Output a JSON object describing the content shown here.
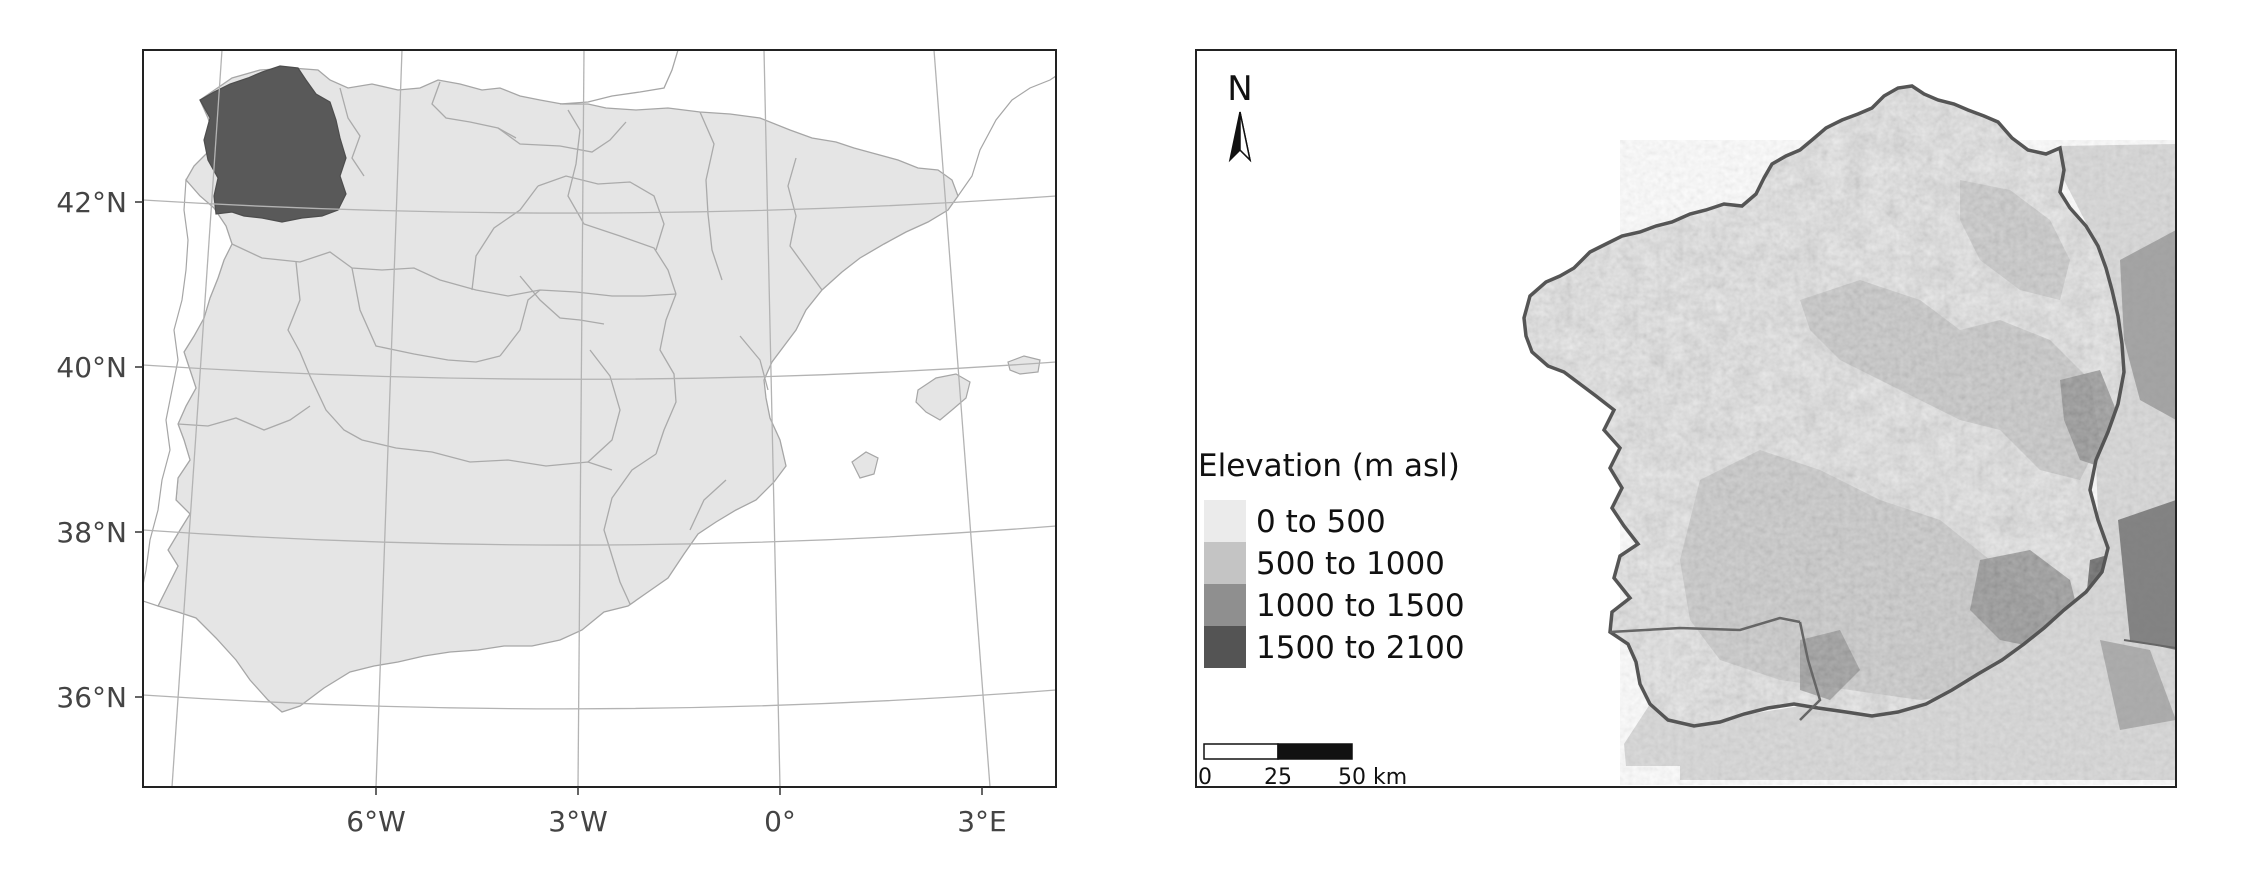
{
  "left_map": {
    "lat_labels": [
      "42°N",
      "40°N",
      "38°N",
      "36°N"
    ],
    "lon_labels": [
      "6°W",
      "3°W",
      "0°",
      "3°E"
    ],
    "highlighted_region_color": "#595959",
    "land_color": "#e5e5e5",
    "graticule_color": "#b3b3b3",
    "border_color": "#a6a6a6"
  },
  "right_map": {
    "north_arrow": "N",
    "legend": {
      "title": "Elevation (m asl)",
      "items": [
        {
          "label": "0 to 500",
          "color": "#ebebeb"
        },
        {
          "label": "500 to 1000",
          "color": "#c4c4c4"
        },
        {
          "label": "1000 to 1500",
          "color": "#8f8f8f"
        },
        {
          "label": "1500 to 2100",
          "color": "#545454"
        }
      ]
    },
    "scale_bar": {
      "labels": [
        "0",
        "25",
        "50 km"
      ]
    },
    "outline_color": "#555555"
  }
}
